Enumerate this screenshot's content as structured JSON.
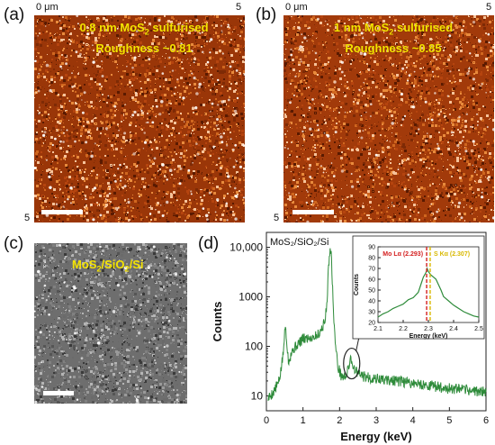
{
  "panels": {
    "a": {
      "label": "(a)",
      "caption_line1": "0.8 nm MoS",
      "caption_sub": "2",
      "caption_line1_tail": " sulfurised",
      "caption_line2": "Roughness ~0.81",
      "axis_top_left": "0 μm",
      "axis_top_right": "5",
      "axis_bottom_left": "5"
    },
    "b": {
      "label": "(b)",
      "caption_line1": "1 nm MoS",
      "caption_sub": "2",
      "caption_line1_tail": " sulfurised",
      "caption_line2": "Roughness ~0.85",
      "axis_top_left": "0 μm",
      "axis_top_right": "5",
      "axis_bottom_left": "5"
    },
    "c": {
      "label": "(c)",
      "caption_a": "MoS",
      "caption_sub1": "2",
      "caption_b": "/SiO",
      "caption_sub2": "2",
      "caption_c": "/Si"
    },
    "d": {
      "label": "(d)"
    }
  },
  "colors": {
    "afm_dark": "#5a1a00",
    "afm_mid": "#b5440f",
    "afm_light": "#f6c39a",
    "spectrum_line": "#2e8b3a",
    "mo_marker": "#d42020",
    "s_marker": "#d8b800"
  },
  "chart_data": [
    {
      "type": "line",
      "title": "MoS₂/SiO₂/Si",
      "xlabel": "Energy (keV)",
      "ylabel": "Counts",
      "yscale": "log",
      "xlim": [
        0,
        6
      ],
      "ylim": [
        5,
        20000
      ],
      "x_ticks": [
        "0",
        "1",
        "2",
        "3",
        "4",
        "5",
        "6"
      ],
      "y_ticks": [
        "10",
        "100",
        "1000",
        "10,000"
      ],
      "series": [
        {
          "x": [
            0.05,
            0.2,
            0.35,
            0.45,
            0.5,
            0.52,
            0.55,
            0.6,
            0.7,
            0.85,
            1.0,
            1.2,
            1.4,
            1.5,
            1.6,
            1.65,
            1.7,
            1.74,
            1.78,
            1.82,
            1.88,
            1.95,
            2.05,
            2.15,
            2.25,
            2.29,
            2.33,
            2.4,
            2.5,
            2.7,
            3.0,
            3.5,
            4.0,
            4.5,
            5.0,
            5.5,
            6.0
          ],
          "y": [
            9,
            12,
            20,
            60,
            180,
            260,
            150,
            50,
            80,
            110,
            140,
            150,
            170,
            220,
            320,
            700,
            4000,
            11000,
            6000,
            800,
            120,
            40,
            25,
            24,
            35,
            62,
            50,
            35,
            28,
            24,
            22,
            20,
            18,
            16,
            14,
            13,
            12
          ]
        }
      ]
    },
    {
      "type": "line",
      "title": "",
      "xlabel": "Energy (keV)",
      "ylabel": "Counts",
      "xlim": [
        2.1,
        2.5
      ],
      "ylim": [
        20,
        90
      ],
      "x_ticks": [
        "2.1",
        "2.2",
        "2.3",
        "2.4",
        "2.5"
      ],
      "y_ticks": [
        "20",
        "30",
        "40",
        "50",
        "60",
        "70",
        "80",
        "90"
      ],
      "annotations": [
        {
          "text": "Mo L",
          "sub": "α",
          "tail": " (2.293)",
          "x": 2.293
        },
        {
          "text": "S K",
          "sub": "α",
          "tail": " (2.307)",
          "x": 2.307
        }
      ],
      "series": [
        {
          "x": [
            2.1,
            2.12,
            2.14,
            2.16,
            2.18,
            2.2,
            2.22,
            2.24,
            2.26,
            2.27,
            2.28,
            2.29,
            2.295,
            2.3,
            2.31,
            2.32,
            2.33,
            2.34,
            2.35,
            2.36,
            2.38,
            2.4,
            2.42,
            2.44,
            2.46,
            2.48,
            2.5
          ],
          "y": [
            25,
            28,
            30,
            33,
            35,
            37,
            41,
            43,
            48,
            55,
            62,
            66,
            70,
            67,
            64,
            62,
            60,
            55,
            50,
            44,
            40,
            36,
            33,
            30,
            28,
            26,
            25
          ]
        }
      ]
    }
  ]
}
